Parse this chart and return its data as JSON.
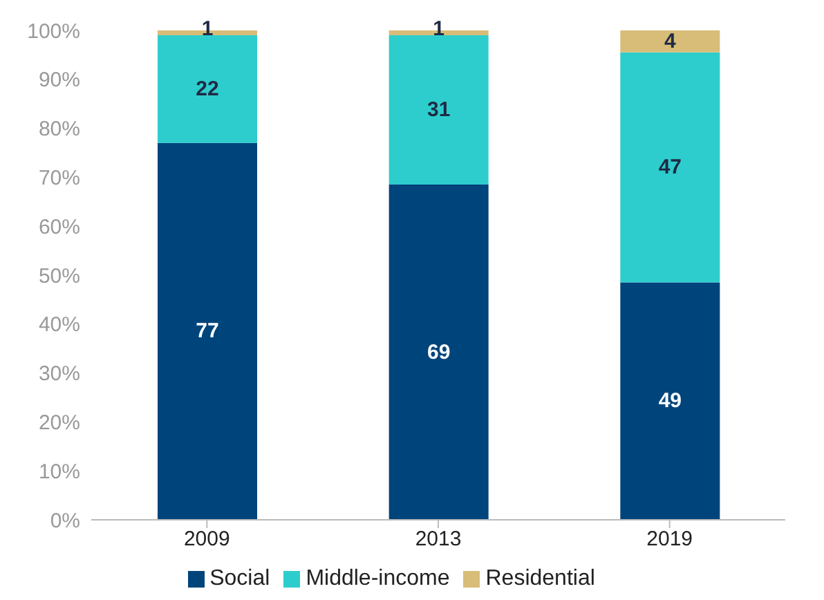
{
  "chart_data": {
    "type": "bar",
    "stacked": true,
    "categories": [
      "2009",
      "2013",
      "2019"
    ],
    "series": [
      {
        "name": "Social",
        "color": "#00447c",
        "values": [
          77,
          68.5,
          48.5
        ],
        "value_labels": [
          "77",
          "69",
          "49"
        ]
      },
      {
        "name": "Middle-income",
        "color": "#2ecdcd",
        "values": [
          22,
          30.5,
          47
        ],
        "value_labels": [
          "22",
          "31",
          "47"
        ]
      },
      {
        "name": "Residential",
        "color": "#d8bd78",
        "values": [
          1,
          1,
          4.5
        ],
        "value_labels": [
          "1",
          "1",
          "4"
        ]
      }
    ],
    "ylim": [
      0,
      100
    ],
    "yticks": [
      {
        "value": 0,
        "label": "0%"
      },
      {
        "value": 10,
        "label": "10%"
      },
      {
        "value": 20,
        "label": "20%"
      },
      {
        "value": 30,
        "label": "30%"
      },
      {
        "value": 40,
        "label": "40%"
      },
      {
        "value": 50,
        "label": "50%"
      },
      {
        "value": 60,
        "label": "60%"
      },
      {
        "value": 70,
        "label": "70%"
      },
      {
        "value": 80,
        "label": "80%"
      },
      {
        "value": 90,
        "label": "90%"
      },
      {
        "value": 100,
        "label": "100%"
      }
    ],
    "grid": false,
    "legend": "bottom"
  }
}
